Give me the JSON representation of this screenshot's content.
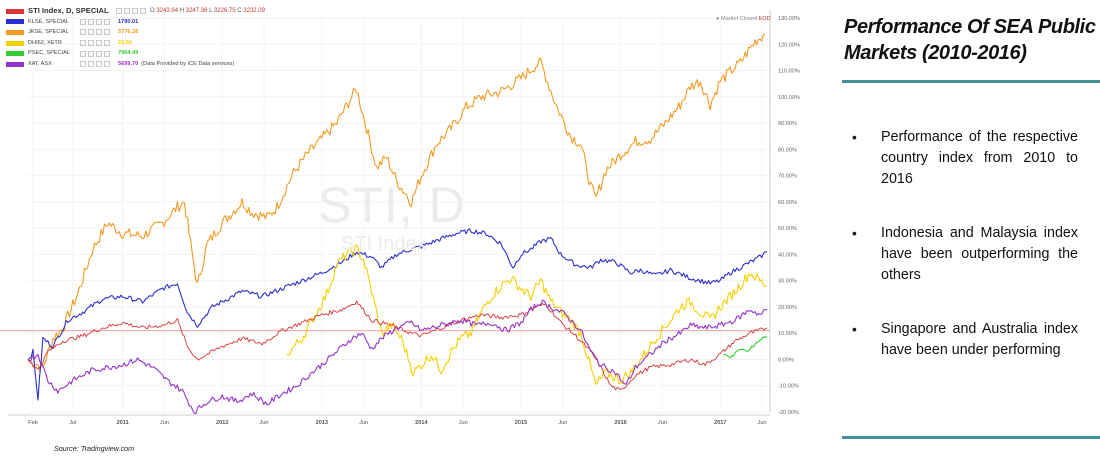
{
  "legend": {
    "main": {
      "name": "STI Index, D, SPECIAL",
      "ohlc": [
        "O",
        "3243.94",
        "H",
        "3247.36",
        "L",
        "3226.75",
        "C",
        "3232.09"
      ]
    },
    "items": [
      {
        "name": "KLSE, SPECIAL",
        "value": "1790.01",
        "color": "#2b2fce"
      },
      {
        "name": "JKSE, SPECIAL",
        "value": "5776.28",
        "color": "#f39a20"
      },
      {
        "name": "DHI62, XETR",
        "value": "21.00",
        "color": "#f5d000"
      },
      {
        "name": "PSEC, SPECIAL",
        "value": "7964.49",
        "color": "#33cc33"
      },
      {
        "name": "XAT, ASX",
        "value": "5699.70",
        "extra": "(Data Provided by ICE Data services)",
        "color": "#9433c9"
      }
    ],
    "main_color": "#d93636"
  },
  "status": {
    "text": "Market Closed",
    "eod": "EOD"
  },
  "watermark": {
    "symbol": "STI, D",
    "name": "STI Index"
  },
  "source": "Source: Tradingview.com",
  "panel": {
    "title": "Performance Of SEA Public Markets (2010-2016)",
    "bullets": [
      "Performance of the respective country index from 2010 to 2016",
      "Indonesia and Malaysia index have been outperforming the others",
      "Singapore and Australia index have been under performing"
    ]
  },
  "chart_data": {
    "type": "line",
    "title": "STI Index, D, SPECIAL",
    "x_ticks": [
      "Feb",
      "Jul",
      "2011",
      "Jun",
      "2012",
      "Jun",
      "2013",
      "Jun",
      "2014",
      "Jun",
      "2015",
      "Jun",
      "2016",
      "Jun",
      "2017",
      "Jun"
    ],
    "y_ticks": [
      "130.00%",
      "120.00%",
      "110.00%",
      "100.00%",
      "90.00%",
      "80.00%",
      "70.00%",
      "60.00%",
      "50.00%",
      "40.00%",
      "30.00%",
      "20.00%",
      "10.00%",
      "0.00%",
      "-10.00%",
      "-20.00%"
    ],
    "ylim": [
      -20,
      130
    ],
    "xlim": [
      2010.05,
      2017.5
    ],
    "reference_line": 11,
    "series": [
      {
        "name": "JKSE, SPECIAL",
        "color": "#f39a20",
        "points": [
          [
            2010.05,
            0
          ],
          [
            2010.2,
            -3
          ],
          [
            2010.3,
            8
          ],
          [
            2010.4,
            12
          ],
          [
            2010.55,
            25
          ],
          [
            2010.7,
            42
          ],
          [
            2010.85,
            52
          ],
          [
            2011.0,
            48
          ],
          [
            2011.2,
            47
          ],
          [
            2011.4,
            52
          ],
          [
            2011.55,
            58
          ],
          [
            2011.62,
            60
          ],
          [
            2011.7,
            40
          ],
          [
            2011.75,
            28
          ],
          [
            2011.85,
            44
          ],
          [
            2012.0,
            52
          ],
          [
            2012.2,
            60
          ],
          [
            2012.3,
            56
          ],
          [
            2012.45,
            54
          ],
          [
            2012.55,
            58
          ],
          [
            2012.7,
            70
          ],
          [
            2012.85,
            78
          ],
          [
            2013.0,
            84
          ],
          [
            2013.15,
            90
          ],
          [
            2013.3,
            100
          ],
          [
            2013.35,
            103
          ],
          [
            2013.45,
            88
          ],
          [
            2013.55,
            73
          ],
          [
            2013.65,
            77
          ],
          [
            2013.75,
            68
          ],
          [
            2013.9,
            60
          ],
          [
            2014.0,
            70
          ],
          [
            2014.15,
            82
          ],
          [
            2014.3,
            88
          ],
          [
            2014.45,
            96
          ],
          [
            2014.6,
            100
          ],
          [
            2014.8,
            102
          ],
          [
            2015.0,
            107
          ],
          [
            2015.15,
            112
          ],
          [
            2015.2,
            113
          ],
          [
            2015.35,
            97
          ],
          [
            2015.5,
            85
          ],
          [
            2015.6,
            82
          ],
          [
            2015.7,
            66
          ],
          [
            2015.75,
            61
          ],
          [
            2015.85,
            72
          ],
          [
            2016.0,
            78
          ],
          [
            2016.15,
            83
          ],
          [
            2016.3,
            84
          ],
          [
            2016.45,
            90
          ],
          [
            2016.6,
            97
          ],
          [
            2016.7,
            104
          ],
          [
            2016.8,
            106
          ],
          [
            2016.9,
            97
          ],
          [
            2017.0,
            106
          ],
          [
            2017.2,
            113
          ],
          [
            2017.35,
            121
          ],
          [
            2017.45,
            124
          ]
        ]
      },
      {
        "name": "KLSE, SPECIAL",
        "color": "#2b2fce",
        "points": [
          [
            2010.05,
            0
          ],
          [
            2010.1,
            3
          ],
          [
            2010.15,
            -15
          ],
          [
            2010.2,
            8
          ],
          [
            2010.3,
            5
          ],
          [
            2010.45,
            15
          ],
          [
            2010.6,
            18
          ],
          [
            2010.8,
            23
          ],
          [
            2011.0,
            24
          ],
          [
            2011.2,
            22
          ],
          [
            2011.4,
            27
          ],
          [
            2011.55,
            29
          ],
          [
            2011.65,
            18
          ],
          [
            2011.75,
            13
          ],
          [
            2011.9,
            20
          ],
          [
            2012.0,
            22
          ],
          [
            2012.2,
            26
          ],
          [
            2012.4,
            24
          ],
          [
            2012.6,
            27
          ],
          [
            2012.8,
            30
          ],
          [
            2013.0,
            33
          ],
          [
            2013.2,
            37
          ],
          [
            2013.35,
            41
          ],
          [
            2013.5,
            39
          ],
          [
            2013.6,
            35
          ],
          [
            2013.75,
            40
          ],
          [
            2013.9,
            42
          ],
          [
            2014.0,
            43
          ],
          [
            2014.2,
            46
          ],
          [
            2014.35,
            48
          ],
          [
            2014.5,
            49
          ],
          [
            2014.65,
            48
          ],
          [
            2014.8,
            44
          ],
          [
            2014.92,
            35
          ],
          [
            2015.0,
            40
          ],
          [
            2015.1,
            42
          ],
          [
            2015.2,
            45
          ],
          [
            2015.3,
            46
          ],
          [
            2015.4,
            40
          ],
          [
            2015.55,
            36
          ],
          [
            2015.7,
            35
          ],
          [
            2015.8,
            38
          ],
          [
            2015.95,
            37
          ],
          [
            2016.1,
            33
          ],
          [
            2016.2,
            34
          ],
          [
            2016.35,
            32
          ],
          [
            2016.5,
            34
          ],
          [
            2016.7,
            31
          ],
          [
            2016.9,
            29
          ],
          [
            2017.0,
            30
          ],
          [
            2017.1,
            33
          ],
          [
            2017.25,
            36
          ],
          [
            2017.4,
            39
          ],
          [
            2017.47,
            41
          ]
        ]
      },
      {
        "name": "DHI62, XETR",
        "color": "#f5d000",
        "points": [
          [
            2012.65,
            2
          ],
          [
            2012.8,
            8
          ],
          [
            2012.95,
            18
          ],
          [
            2013.05,
            25
          ],
          [
            2013.15,
            36
          ],
          [
            2013.25,
            40
          ],
          [
            2013.35,
            42
          ],
          [
            2013.42,
            38
          ],
          [
            2013.5,
            26
          ],
          [
            2013.55,
            18
          ],
          [
            2013.6,
            10
          ],
          [
            2013.7,
            13
          ],
          [
            2013.8,
            8
          ],
          [
            2013.92,
            -5
          ],
          [
            2014.0,
            -2
          ],
          [
            2014.1,
            2
          ],
          [
            2014.2,
            -4
          ],
          [
            2014.3,
            3
          ],
          [
            2014.4,
            8
          ],
          [
            2014.5,
            10
          ],
          [
            2014.6,
            18
          ],
          [
            2014.7,
            24
          ],
          [
            2014.8,
            28
          ],
          [
            2014.9,
            31
          ],
          [
            2015.0,
            27
          ],
          [
            2015.1,
            24
          ],
          [
            2015.2,
            30
          ],
          [
            2015.3,
            22
          ],
          [
            2015.4,
            18
          ],
          [
            2015.5,
            15
          ],
          [
            2015.6,
            10
          ],
          [
            2015.7,
            -3
          ],
          [
            2015.75,
            -10
          ],
          [
            2015.85,
            -5
          ],
          [
            2016.0,
            -8
          ],
          [
            2016.1,
            -5
          ],
          [
            2016.2,
            0
          ],
          [
            2016.35,
            8
          ],
          [
            2016.5,
            15
          ],
          [
            2016.6,
            20
          ],
          [
            2016.7,
            22
          ],
          [
            2016.8,
            18
          ],
          [
            2016.9,
            15
          ],
          [
            2017.0,
            20
          ],
          [
            2017.15,
            26
          ],
          [
            2017.3,
            33
          ],
          [
            2017.4,
            30
          ],
          [
            2017.47,
            28
          ]
        ]
      },
      {
        "name": "STI Index, D, SPECIAL",
        "color": "#d93636",
        "points": [
          [
            2010.05,
            0
          ],
          [
            2010.15,
            -4
          ],
          [
            2010.25,
            3
          ],
          [
            2010.4,
            7
          ],
          [
            2010.6,
            9
          ],
          [
            2010.8,
            12
          ],
          [
            2011.0,
            14
          ],
          [
            2011.2,
            12
          ],
          [
            2011.4,
            13
          ],
          [
            2011.55,
            15
          ],
          [
            2011.65,
            5
          ],
          [
            2011.75,
            0
          ],
          [
            2011.9,
            3
          ],
          [
            2012.0,
            5
          ],
          [
            2012.2,
            8
          ],
          [
            2012.4,
            6
          ],
          [
            2012.6,
            11
          ],
          [
            2012.8,
            14
          ],
          [
            2013.0,
            17
          ],
          [
            2013.2,
            19
          ],
          [
            2013.35,
            22
          ],
          [
            2013.5,
            15
          ],
          [
            2013.7,
            13
          ],
          [
            2013.9,
            10
          ],
          [
            2014.0,
            9
          ],
          [
            2014.2,
            12
          ],
          [
            2014.4,
            15
          ],
          [
            2014.6,
            17
          ],
          [
            2014.8,
            16
          ],
          [
            2015.0,
            17
          ],
          [
            2015.15,
            20
          ],
          [
            2015.25,
            21
          ],
          [
            2015.4,
            14
          ],
          [
            2015.55,
            9
          ],
          [
            2015.7,
            3
          ],
          [
            2015.8,
            -3
          ],
          [
            2015.9,
            -10
          ],
          [
            2016.0,
            -12
          ],
          [
            2016.15,
            -6
          ],
          [
            2016.3,
            -3
          ],
          [
            2016.5,
            -2
          ],
          [
            2016.7,
            0
          ],
          [
            2016.85,
            -2
          ],
          [
            2017.0,
            2
          ],
          [
            2017.15,
            7
          ],
          [
            2017.3,
            10
          ],
          [
            2017.47,
            12
          ]
        ]
      },
      {
        "name": "XAT, ASX",
        "color": "#9433c9",
        "points": [
          [
            2010.05,
            0
          ],
          [
            2010.15,
            2
          ],
          [
            2010.25,
            -8
          ],
          [
            2010.35,
            -12
          ],
          [
            2010.5,
            -8
          ],
          [
            2010.7,
            -4
          ],
          [
            2010.85,
            -3
          ],
          [
            2011.0,
            -2
          ],
          [
            2011.15,
            0
          ],
          [
            2011.3,
            -3
          ],
          [
            2011.45,
            -8
          ],
          [
            2011.6,
            -12
          ],
          [
            2011.72,
            -20
          ],
          [
            2011.85,
            -16
          ],
          [
            2012.0,
            -14
          ],
          [
            2012.15,
            -16
          ],
          [
            2012.3,
            -13
          ],
          [
            2012.45,
            -17
          ],
          [
            2012.6,
            -13
          ],
          [
            2012.75,
            -10
          ],
          [
            2012.9,
            -5
          ],
          [
            2013.0,
            -2
          ],
          [
            2013.15,
            3
          ],
          [
            2013.3,
            8
          ],
          [
            2013.4,
            10
          ],
          [
            2013.5,
            4
          ],
          [
            2013.6,
            8
          ],
          [
            2013.75,
            12
          ],
          [
            2013.9,
            14
          ],
          [
            2014.0,
            11
          ],
          [
            2014.2,
            13
          ],
          [
            2014.4,
            15
          ],
          [
            2014.55,
            13
          ],
          [
            2014.7,
            14
          ],
          [
            2014.85,
            11
          ],
          [
            2015.0,
            14
          ],
          [
            2015.1,
            19
          ],
          [
            2015.2,
            22
          ],
          [
            2015.3,
            20
          ],
          [
            2015.45,
            17
          ],
          [
            2015.6,
            11
          ],
          [
            2015.7,
            3
          ],
          [
            2015.8,
            -2
          ],
          [
            2015.95,
            -5
          ],
          [
            2016.05,
            -10
          ],
          [
            2016.15,
            -3
          ],
          [
            2016.3,
            2
          ],
          [
            2016.45,
            7
          ],
          [
            2016.6,
            10
          ],
          [
            2016.7,
            13
          ],
          [
            2016.85,
            12
          ],
          [
            2017.0,
            13
          ],
          [
            2017.15,
            15
          ],
          [
            2017.3,
            19
          ],
          [
            2017.4,
            17
          ],
          [
            2017.47,
            19
          ]
        ]
      },
      {
        "name": "PSEC, SPECIAL",
        "color": "#33cc33",
        "points": [
          [
            2017.03,
            2
          ],
          [
            2017.12,
            1
          ],
          [
            2017.2,
            4
          ],
          [
            2017.28,
            3
          ],
          [
            2017.35,
            6
          ],
          [
            2017.42,
            8
          ],
          [
            2017.47,
            9
          ]
        ]
      }
    ]
  }
}
